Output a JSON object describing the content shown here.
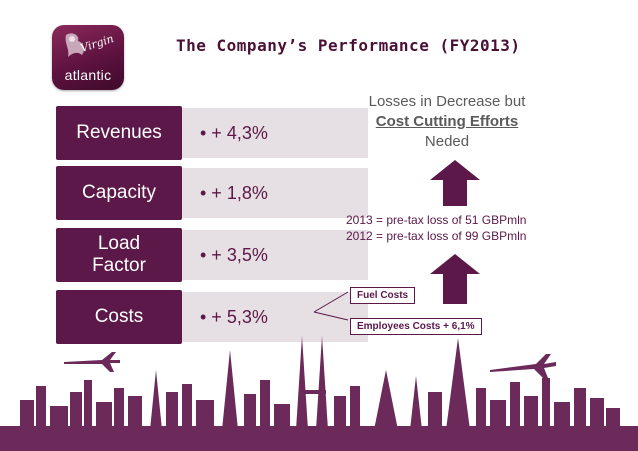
{
  "logo": {
    "script": "Virgin",
    "word": "atlantic"
  },
  "title": "The Company’s Performance (FY2013)",
  "metrics": [
    {
      "label": "Revenues",
      "value": "• + 4,3%"
    },
    {
      "label": "Capacity",
      "value": "• + 1,8%"
    },
    {
      "label": "Load Factor",
      "value": "• + 3,5%"
    },
    {
      "label": "Costs",
      "value": "• + 5,3%"
    }
  ],
  "losses": {
    "line1": "Losses in Decrease but",
    "line2": "Cost Cutting Efforts",
    "line3": "Neded"
  },
  "pretax": {
    "line2013": "2013 = pre-tax loss of 51 GBPmln",
    "line2012": "2012 = pre-tax loss of 99 GBPmln"
  },
  "cost_items": {
    "fuel": "Fuel Costs",
    "employees": "Employees Costs + 6,1%"
  },
  "colors": {
    "brand": "#5b1848",
    "value_bg": "#e6dfe3",
    "skyline": "#6b2a5a"
  },
  "icons": {
    "arrow": "up-arrow-icon",
    "plane": "airplane-icon",
    "logo": "virgin-atlantic-logo"
  }
}
